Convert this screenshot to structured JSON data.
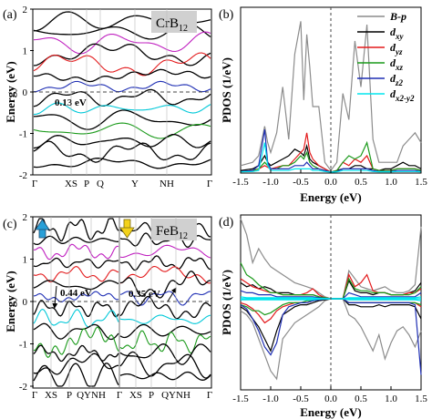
{
  "figure": {
    "panels": [
      {
        "id": "a",
        "label": "(a)",
        "compound": "CrB",
        "compound_sub": "12",
        "xlabel": "",
        "ylabel": "Energy (eV)",
        "kpoints": [
          "Γ",
          "XS",
          "P",
          "Q",
          "Y",
          "NH",
          "Γ"
        ],
        "yticks": [
          "2",
          "1",
          "0",
          "-1",
          "-2"
        ],
        "annotation": "0.13 eV"
      },
      {
        "id": "b",
        "label": "(b)",
        "ylabel": "PDOS (1/eV)",
        "xlabel": "Energy (eV)",
        "xticks": [
          "-1.5",
          "-1.0",
          "-0.5",
          "0.0",
          "0.5",
          "1.0",
          "1.5"
        ]
      },
      {
        "id": "c",
        "label": "(c)",
        "compound": "FeB",
        "compound_sub": "12",
        "xlabel": "",
        "ylabel": "Energy (eV)",
        "kpoints": [
          "Γ",
          "XS",
          "P",
          "QYNH",
          "Γ",
          "XS",
          "P",
          "QYNH",
          "Γ"
        ],
        "yticks": [
          "2",
          "1",
          "0",
          "-1",
          "-2"
        ],
        "annotations": [
          "0.44 eV",
          "0.35 eV"
        ]
      },
      {
        "id": "d",
        "label": "(d)",
        "ylabel": "PDOS (1/eV)",
        "xlabel": "Energy (eV)",
        "xticks": [
          "-1.5",
          "-1.0",
          "-0.5",
          "0.0",
          "0.5",
          "1.0",
          "1.5"
        ]
      }
    ],
    "legend": [
      {
        "name": "B-",
        "sub": "",
        "it": "p",
        "color": "#8c8c8c"
      },
      {
        "name": "d",
        "sub": "xy",
        "it": "",
        "color": "#000000"
      },
      {
        "name": "d",
        "sub": "yz",
        "it": "",
        "color": "#e31a1c"
      },
      {
        "name": "d",
        "sub": "xz",
        "it": "",
        "color": "#1a9a1a"
      },
      {
        "name": "d",
        "sub": "z2",
        "it": "",
        "color": "#1f2fb4"
      },
      {
        "name": "d",
        "sub": "x2-y2",
        "it": "",
        "color": "#00e5ee"
      }
    ]
  },
  "chart_data": [
    {
      "type": "line",
      "panel": "b",
      "xlabel": "Energy (eV)",
      "ylabel": "PDOS (1/eV)",
      "xlim": [
        -1.5,
        1.5
      ],
      "x": [
        -1.5,
        -1.3,
        -1.2,
        -1.1,
        -1.05,
        -1.0,
        -0.9,
        -0.8,
        -0.7,
        -0.6,
        -0.5,
        -0.45,
        -0.4,
        -0.35,
        -0.3,
        -0.2,
        -0.1,
        0.0,
        0.1,
        0.2,
        0.3,
        0.4,
        0.5,
        0.6,
        0.7,
        0.8,
        0.9,
        1.0,
        1.1,
        1.2,
        1.3,
        1.4,
        1.5
      ],
      "series": [
        {
          "name": "B-p",
          "values": [
            0.2,
            0.3,
            0.5,
            1.4,
            0.9,
            0.6,
            1.2,
            2.6,
            1.0,
            3.6,
            4.6,
            2.2,
            4.2,
            3.2,
            2.0,
            2.0,
            0.3,
            0.05,
            0.3,
            2.4,
            1.6,
            4.0,
            2.6,
            4.5,
            1.0,
            0.3,
            0.3,
            0.3,
            0.3,
            0.8,
            1.0,
            1.2,
            0.9
          ]
        },
        {
          "name": "dxy",
          "values": [
            0.05,
            0.1,
            0.2,
            0.5,
            0.3,
            0.2,
            0.3,
            0.4,
            0.5,
            0.7,
            0.6,
            0.5,
            0.8,
            0.4,
            0.3,
            0.2,
            0.1,
            0.0,
            0.05,
            0.1,
            0.1,
            0.2,
            0.2,
            0.1,
            0.1,
            0.05,
            0.1,
            0.1,
            0.2,
            0.3,
            0.2,
            0.2,
            0.1
          ]
        },
        {
          "name": "dyz",
          "values": [
            0.02,
            0.05,
            0.1,
            0.2,
            0.15,
            0.1,
            0.15,
            0.2,
            0.2,
            0.4,
            0.6,
            0.7,
            1.2,
            0.6,
            0.4,
            0.2,
            0.1,
            0.0,
            0.05,
            0.3,
            0.2,
            0.4,
            0.3,
            0.5,
            0.1,
            0.05,
            0.05,
            0.05,
            0.1,
            0.1,
            0.1,
            0.1,
            0.05
          ]
        },
        {
          "name": "dxz",
          "values": [
            0.02,
            0.05,
            0.1,
            0.3,
            0.2,
            0.1,
            0.1,
            0.2,
            0.2,
            0.3,
            0.5,
            0.4,
            0.6,
            0.3,
            0.2,
            0.1,
            0.05,
            0.0,
            0.05,
            0.3,
            0.5,
            0.4,
            0.5,
            0.9,
            0.1,
            0.05,
            0.05,
            0.05,
            0.1,
            0.1,
            0.1,
            0.1,
            0.05
          ]
        },
        {
          "name": "dz2",
          "values": [
            0.02,
            0.05,
            0.2,
            1.3,
            0.3,
            0.1,
            0.1,
            0.1,
            0.1,
            0.2,
            0.2,
            0.2,
            0.3,
            0.2,
            0.1,
            0.1,
            0.05,
            0.0,
            0.02,
            0.1,
            0.1,
            0.1,
            0.1,
            0.1,
            0.05,
            0.02,
            0.02,
            0.02,
            0.05,
            0.05,
            0.05,
            0.05,
            0.02
          ]
        },
        {
          "name": "dx2-y2",
          "values": [
            0.01,
            0.02,
            0.05,
            0.9,
            0.2,
            0.05,
            0.05,
            0.05,
            0.05,
            0.1,
            0.1,
            0.1,
            0.1,
            0.1,
            0.05,
            0.05,
            0.02,
            0.0,
            0.01,
            0.05,
            0.05,
            0.05,
            0.05,
            0.05,
            0.02,
            0.01,
            0.01,
            0.01,
            0.02,
            0.02,
            0.02,
            0.02,
            0.01
          ]
        }
      ]
    },
    {
      "type": "line",
      "panel": "d",
      "xlabel": "Energy (eV)",
      "ylabel": "PDOS (1/eV)",
      "xlim": [
        -1.5,
        1.5
      ],
      "x": [
        -1.5,
        -1.4,
        -1.3,
        -1.2,
        -1.1,
        -1.0,
        -0.9,
        -0.8,
        -0.7,
        -0.6,
        -0.5,
        -0.4,
        -0.3,
        -0.2,
        -0.1,
        0.0,
        0.1,
        0.2,
        0.3,
        0.4,
        0.5,
        0.6,
        0.7,
        0.8,
        0.9,
        1.0,
        1.1,
        1.2,
        1.3,
        1.4,
        1.5
      ],
      "series": [
        {
          "name": "B-p (up)",
          "values": [
            4.0,
            3.2,
            1.8,
            2.5,
            2.0,
            1.6,
            1.4,
            1.2,
            1.0,
            0.8,
            0.7,
            0.6,
            0.5,
            0.3,
            0.1,
            0.0,
            0.0,
            0.0,
            1.4,
            1.0,
            0.6,
            0.5,
            0.4,
            0.5,
            0.6,
            0.4,
            0.3,
            0.3,
            0.4,
            0.7,
            3.6
          ]
        },
        {
          "name": "dxy (up)",
          "values": [
            0.8,
            0.6,
            0.7,
            0.5,
            0.6,
            0.5,
            0.3,
            0.3,
            0.3,
            0.2,
            0.2,
            0.2,
            0.2,
            0.1,
            0.05,
            0.0,
            0.0,
            0.0,
            0.9,
            0.4,
            0.3,
            0.3,
            0.2,
            0.3,
            0.3,
            0.2,
            0.2,
            0.2,
            0.3,
            0.4,
            0.8
          ]
        },
        {
          "name": "dyz (up)",
          "values": [
            1.0,
            0.8,
            0.6,
            0.5,
            0.4,
            0.3,
            0.3,
            0.2,
            0.2,
            0.2,
            0.2,
            0.3,
            0.5,
            0.2,
            0.05,
            0.0,
            0.0,
            0.0,
            1.2,
            0.6,
            0.8,
            1.2,
            0.4,
            0.3,
            0.3,
            0.2,
            0.2,
            0.2,
            0.3,
            0.3,
            0.5
          ]
        },
        {
          "name": "dxz (up)",
          "values": [
            1.8,
            1.2,
            1.0,
            0.7,
            0.5,
            0.3,
            0.3,
            0.2,
            0.2,
            0.2,
            0.2,
            0.2,
            0.2,
            0.1,
            0.05,
            0.0,
            0.0,
            0.0,
            1.0,
            0.5,
            0.4,
            0.4,
            0.3,
            0.3,
            0.3,
            0.2,
            0.2,
            0.2,
            0.2,
            0.3,
            0.6
          ]
        },
        {
          "name": "dz2 (up)",
          "values": [
            0.4,
            0.3,
            0.3,
            0.2,
            0.2,
            0.2,
            0.1,
            0.1,
            0.1,
            0.1,
            0.1,
            0.1,
            0.1,
            0.05,
            0.02,
            0.0,
            0.0,
            0.0,
            0.3,
            0.2,
            0.1,
            0.1,
            0.1,
            0.1,
            0.1,
            0.1,
            0.1,
            0.1,
            0.1,
            0.1,
            0.3
          ]
        },
        {
          "name": "dx2-y2 (up)",
          "values": [
            0.1,
            0.05,
            0.05,
            0.05,
            0.05,
            0.05,
            0.05,
            0.05,
            0.05,
            0.05,
            0.05,
            0.05,
            0.05,
            0.02,
            0.01,
            0.0,
            0.0,
            0.0,
            0.05,
            0.05,
            0.05,
            0.05,
            0.05,
            0.05,
            0.05,
            0.05,
            0.05,
            0.05,
            0.05,
            0.05,
            0.1
          ]
        },
        {
          "name": "B-p (down)",
          "values": [
            -0.6,
            -0.8,
            -1.2,
            -2.0,
            -2.8,
            -3.6,
            -4.0,
            -2.0,
            -1.6,
            -1.2,
            -1.0,
            -0.8,
            -0.6,
            -0.4,
            -0.1,
            0.0,
            0.0,
            0.0,
            -0.8,
            -1.0,
            -1.4,
            -2.0,
            -2.6,
            -1.8,
            -3.0,
            -2.2,
            -1.6,
            -1.4,
            -1.8,
            -2.4,
            -1.6
          ]
        },
        {
          "name": "dxy (down)",
          "values": [
            -0.4,
            -0.6,
            -1.0,
            -1.4,
            -2.0,
            -2.6,
            -1.6,
            -0.8,
            -0.6,
            -0.4,
            -0.3,
            -0.3,
            -0.2,
            -0.1,
            -0.05,
            0.0,
            0.0,
            0.0,
            -0.3,
            -0.3,
            -0.4,
            -0.4,
            -0.4,
            -0.3,
            -0.4,
            -0.3,
            -0.3,
            -0.3,
            -0.3,
            -0.4,
            -1.0
          ]
        },
        {
          "name": "dyz (down)",
          "values": [
            -0.2,
            -0.3,
            -0.5,
            -0.8,
            -1.2,
            -1.0,
            -0.6,
            -0.4,
            -0.3,
            -0.2,
            -0.2,
            -0.2,
            -0.1,
            -0.05,
            -0.02,
            0.0,
            0.0,
            0.0,
            -0.2,
            -0.2,
            -0.2,
            -0.2,
            -0.2,
            -0.2,
            -0.2,
            -0.2,
            -0.2,
            -0.2,
            -0.2,
            -0.2,
            -0.4
          ]
        },
        {
          "name": "dxz (down)",
          "values": [
            -0.3,
            -0.4,
            -0.6,
            -0.6,
            -0.8,
            -0.7,
            -0.5,
            -0.3,
            -0.2,
            -0.2,
            -0.2,
            -0.1,
            -0.1,
            -0.05,
            -0.02,
            0.0,
            0.0,
            0.0,
            -0.2,
            -0.2,
            -0.2,
            -0.2,
            -0.2,
            -0.2,
            -0.2,
            -0.2,
            -0.2,
            -0.2,
            -0.2,
            -0.2,
            -0.3
          ]
        },
        {
          "name": "dz2 (down)",
          "values": [
            -0.3,
            -0.5,
            -1.0,
            -1.6,
            -2.4,
            -2.8,
            -2.2,
            -0.8,
            -0.4,
            -0.3,
            -0.2,
            -0.2,
            -0.1,
            -0.05,
            -0.02,
            0.0,
            0.0,
            0.0,
            -0.2,
            -0.2,
            -0.2,
            -0.2,
            -0.2,
            -0.2,
            -0.2,
            -0.2,
            -0.2,
            -0.2,
            -0.2,
            -0.3,
            -3.8
          ]
        },
        {
          "name": "dx2-y2 (down)",
          "values": [
            -0.05,
            -0.05,
            -0.05,
            -0.05,
            -0.05,
            -0.05,
            -0.05,
            -0.05,
            -0.05,
            -0.05,
            -0.05,
            -0.05,
            -0.05,
            -0.02,
            -0.01,
            0.0,
            0.0,
            0.0,
            -0.05,
            -0.05,
            -0.05,
            -0.05,
            -0.05,
            -0.05,
            -0.05,
            -0.05,
            -0.05,
            -0.05,
            -0.05,
            -0.05,
            -0.1
          ]
        }
      ]
    }
  ]
}
